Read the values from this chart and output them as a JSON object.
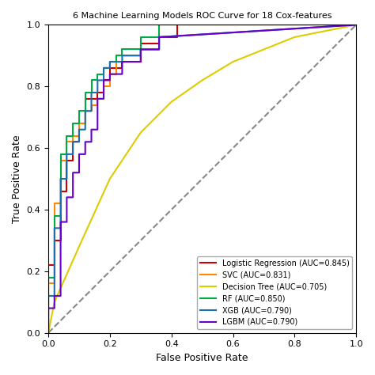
{
  "title": "6 Machine Learning Models ROC Curve for 18 Cox-features",
  "xlabel": "False Positive Rate",
  "ylabel": "True Positive Rate",
  "xlim": [
    0.0,
    1.0
  ],
  "ylim": [
    0.0,
    1.0
  ],
  "diagonal_color": "#888888",
  "curves": {
    "Logistic Regression (AUC=0.845)": {
      "color": "#cc0000",
      "fpr": [
        0.0,
        0.0,
        0.02,
        0.02,
        0.04,
        0.04,
        0.06,
        0.06,
        0.08,
        0.08,
        0.1,
        0.1,
        0.12,
        0.12,
        0.16,
        0.16,
        0.18,
        0.18,
        0.2,
        0.2,
        0.24,
        0.24,
        0.3,
        0.3,
        0.36,
        0.36,
        0.42,
        0.42,
        1.0
      ],
      "tpr": [
        0.0,
        0.22,
        0.22,
        0.3,
        0.3,
        0.46,
        0.46,
        0.56,
        0.56,
        0.62,
        0.62,
        0.68,
        0.68,
        0.76,
        0.76,
        0.78,
        0.78,
        0.82,
        0.82,
        0.86,
        0.86,
        0.88,
        0.88,
        0.94,
        0.94,
        0.96,
        0.96,
        1.0,
        1.0
      ]
    },
    "SVC (AUC=0.831)": {
      "color": "#ff8800",
      "fpr": [
        0.0,
        0.0,
        0.02,
        0.02,
        0.04,
        0.04,
        0.06,
        0.06,
        0.08,
        0.08,
        0.1,
        0.1,
        0.12,
        0.12,
        0.14,
        0.14,
        0.16,
        0.16,
        0.18,
        0.18,
        0.2,
        0.2,
        0.22,
        0.22,
        0.3,
        0.3,
        0.36,
        0.36,
        1.0
      ],
      "tpr": [
        0.0,
        0.16,
        0.16,
        0.42,
        0.42,
        0.56,
        0.56,
        0.62,
        0.62,
        0.64,
        0.64,
        0.68,
        0.68,
        0.72,
        0.72,
        0.74,
        0.74,
        0.76,
        0.76,
        0.8,
        0.8,
        0.84,
        0.84,
        0.9,
        0.9,
        0.92,
        0.92,
        1.0,
        1.0
      ]
    },
    "Decision Tree (AUC=0.705)": {
      "color": "#ddcc00",
      "fpr": [
        0.0,
        0.0,
        0.02,
        0.1,
        0.2,
        0.3,
        0.4,
        0.5,
        0.6,
        0.7,
        0.8,
        0.9,
        1.0
      ],
      "tpr": [
        0.0,
        0.0,
        0.1,
        0.28,
        0.5,
        0.65,
        0.75,
        0.82,
        0.88,
        0.92,
        0.96,
        0.98,
        1.0
      ]
    },
    "RF (AUC=0.850)": {
      "color": "#00aa44",
      "fpr": [
        0.0,
        0.0,
        0.02,
        0.02,
        0.04,
        0.04,
        0.06,
        0.06,
        0.08,
        0.08,
        0.1,
        0.1,
        0.12,
        0.12,
        0.14,
        0.14,
        0.16,
        0.16,
        0.18,
        0.18,
        0.2,
        0.2,
        0.22,
        0.22,
        0.24,
        0.24,
        0.3,
        0.3,
        0.36,
        0.36,
        1.0
      ],
      "tpr": [
        0.0,
        0.18,
        0.18,
        0.38,
        0.38,
        0.58,
        0.58,
        0.64,
        0.64,
        0.68,
        0.68,
        0.72,
        0.72,
        0.78,
        0.78,
        0.82,
        0.82,
        0.84,
        0.84,
        0.86,
        0.86,
        0.88,
        0.88,
        0.9,
        0.9,
        0.92,
        0.92,
        0.96,
        0.96,
        1.0,
        1.0
      ]
    },
    "XGB (AUC=0.790)": {
      "color": "#1a6faf",
      "fpr": [
        0.0,
        0.0,
        0.02,
        0.02,
        0.04,
        0.04,
        0.06,
        0.06,
        0.08,
        0.08,
        0.1,
        0.1,
        0.12,
        0.12,
        0.14,
        0.14,
        0.16,
        0.16,
        0.18,
        0.18,
        0.2,
        0.2,
        0.24,
        0.24,
        0.3,
        0.3,
        0.36,
        0.36,
        1.0
      ],
      "tpr": [
        0.0,
        0.12,
        0.12,
        0.34,
        0.34,
        0.5,
        0.5,
        0.58,
        0.58,
        0.62,
        0.62,
        0.66,
        0.66,
        0.72,
        0.72,
        0.78,
        0.78,
        0.82,
        0.82,
        0.86,
        0.86,
        0.88,
        0.88,
        0.9,
        0.9,
        0.92,
        0.92,
        0.96,
        1.0
      ]
    },
    "LGBM (AUC=0.790)": {
      "color": "#6600cc",
      "fpr": [
        0.0,
        0.0,
        0.02,
        0.02,
        0.04,
        0.04,
        0.06,
        0.06,
        0.08,
        0.08,
        0.1,
        0.1,
        0.12,
        0.12,
        0.14,
        0.14,
        0.16,
        0.16,
        0.18,
        0.18,
        0.2,
        0.2,
        0.24,
        0.24,
        0.3,
        0.3,
        0.36,
        0.36,
        1.0
      ],
      "tpr": [
        0.0,
        0.08,
        0.08,
        0.12,
        0.12,
        0.36,
        0.36,
        0.44,
        0.44,
        0.52,
        0.52,
        0.58,
        0.58,
        0.62,
        0.62,
        0.66,
        0.66,
        0.76,
        0.76,
        0.82,
        0.82,
        0.84,
        0.84,
        0.88,
        0.88,
        0.92,
        0.92,
        0.96,
        1.0
      ]
    }
  },
  "legend_order": [
    "Logistic Regression (AUC=0.845)",
    "SVC (AUC=0.831)",
    "Decision Tree (AUC=0.705)",
    "RF (AUC=0.850)",
    "XGB (AUC=0.790)",
    "LGBM (AUC=0.790)"
  ],
  "figsize": [
    4.74,
    4.74
  ],
  "dpi": 100,
  "title_fontsize": 8,
  "axis_fontsize": 9,
  "tick_fontsize": 8,
  "legend_fontsize": 7
}
